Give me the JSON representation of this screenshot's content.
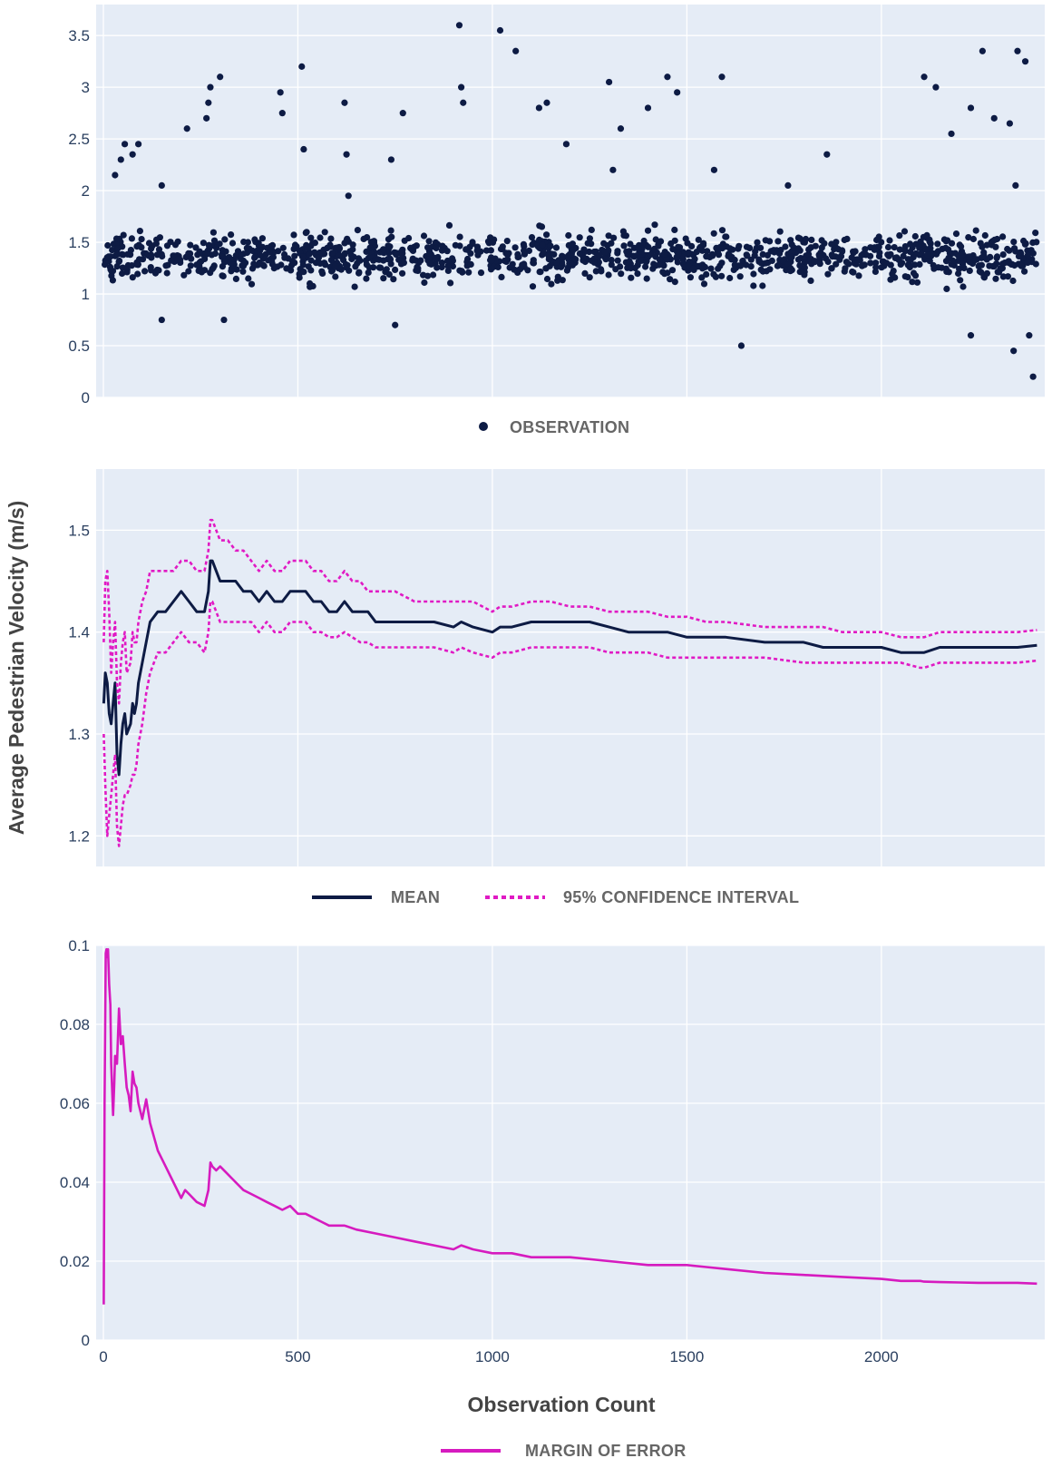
{
  "colors": {
    "plot_background": "#e5ecf6",
    "grid": "#ffffff",
    "observation": "#0d1b44",
    "mean": "#0d1b44",
    "confidence_interval": "#e01ac4",
    "margin_of_error": "#d61bbf"
  },
  "legends": {
    "observation": "OBSERVATION",
    "mean": "MEAN",
    "confidence_interval": "95% CONFIDENCE INTERVAL",
    "margin_of_error": "MARGIN OF ERROR"
  },
  "axis_titles": {
    "x": "Observation Count",
    "y": "Average Pedestrian Velocity (m/s)"
  },
  "chart_data": [
    {
      "type": "scatter",
      "xlim": [
        0,
        2420
      ],
      "ylim": [
        0,
        3.8
      ],
      "yticks": [
        0,
        0.5,
        1,
        1.5,
        2,
        2.5,
        3,
        3.5
      ],
      "ytick_labels": [
        "0",
        "0.5",
        "1",
        "1.5",
        "2",
        "2.5",
        "3",
        "3.5"
      ],
      "xticks": [
        0,
        500,
        1000,
        1500,
        2000
      ],
      "grid": true,
      "legend_position": "bottom-center",
      "series": [
        {
          "name": "OBSERVATION",
          "n_points": 2400,
          "bulk_band": [
            0.85,
            1.8
          ],
          "outliers": [
            [
              30,
              2.15
            ],
            [
              45,
              2.3
            ],
            [
              55,
              2.45
            ],
            [
              75,
              2.35
            ],
            [
              90,
              2.45
            ],
            [
              150,
              2.05
            ],
            [
              215,
              2.6
            ],
            [
              265,
              2.7
            ],
            [
              270,
              2.85
            ],
            [
              275,
              3.0
            ],
            [
              300,
              3.1
            ],
            [
              455,
              2.95
            ],
            [
              460,
              2.75
            ],
            [
              510,
              3.2
            ],
            [
              515,
              2.4
            ],
            [
              620,
              2.85
            ],
            [
              625,
              2.35
            ],
            [
              630,
              1.95
            ],
            [
              740,
              2.3
            ],
            [
              770,
              2.75
            ],
            [
              915,
              3.6
            ],
            [
              920,
              3.0
            ],
            [
              925,
              2.85
            ],
            [
              1020,
              3.55
            ],
            [
              1060,
              3.35
            ],
            [
              1120,
              2.8
            ],
            [
              1140,
              2.85
            ],
            [
              1190,
              2.45
            ],
            [
              1300,
              3.05
            ],
            [
              1310,
              2.2
            ],
            [
              1330,
              2.6
            ],
            [
              1400,
              2.8
            ],
            [
              1450,
              3.1
            ],
            [
              1475,
              2.95
            ],
            [
              1570,
              2.2
            ],
            [
              1590,
              3.1
            ],
            [
              1760,
              2.05
            ],
            [
              1860,
              2.35
            ],
            [
              2110,
              3.1
            ],
            [
              2140,
              3.0
            ],
            [
              2180,
              2.55
            ],
            [
              2230,
              2.8
            ],
            [
              2260,
              3.35
            ],
            [
              2290,
              2.7
            ],
            [
              2330,
              2.65
            ],
            [
              2350,
              3.35
            ],
            [
              2370,
              3.25
            ],
            [
              2345,
              2.05
            ],
            [
              150,
              0.75
            ],
            [
              310,
              0.75
            ],
            [
              750,
              0.7
            ],
            [
              1640,
              0.5
            ],
            [
              2230,
              0.6
            ],
            [
              2340,
              0.45
            ],
            [
              2380,
              0.6
            ],
            [
              2390,
              0.2
            ]
          ]
        }
      ]
    },
    {
      "type": "line",
      "xlim": [
        0,
        2420
      ],
      "ylim": [
        1.17,
        1.56
      ],
      "yticks": [
        1.2,
        1.3,
        1.4,
        1.5
      ],
      "ytick_labels": [
        "1.2",
        "1.3",
        "1.4",
        "1.5"
      ],
      "xticks": [
        0,
        500,
        1000,
        1500,
        2000
      ],
      "grid": true,
      "legend_position": "bottom-center",
      "series": [
        {
          "name": "MEAN",
          "style": "solid",
          "x": [
            1,
            5,
            10,
            15,
            20,
            25,
            30,
            35,
            40,
            45,
            50,
            55,
            60,
            70,
            75,
            80,
            85,
            90,
            100,
            110,
            120,
            140,
            160,
            180,
            200,
            220,
            240,
            260,
            270,
            275,
            280,
            290,
            300,
            320,
            340,
            360,
            380,
            400,
            420,
            440,
            460,
            480,
            500,
            520,
            540,
            560,
            580,
            600,
            620,
            640,
            660,
            680,
            700,
            750,
            800,
            850,
            900,
            920,
            950,
            1000,
            1020,
            1050,
            1100,
            1150,
            1200,
            1250,
            1300,
            1350,
            1400,
            1450,
            1500,
            1550,
            1600,
            1700,
            1800,
            1850,
            1900,
            2000,
            2050,
            2100,
            2110,
            2150,
            2200,
            2250,
            2300,
            2350,
            2400
          ],
          "y": [
            1.33,
            1.36,
            1.35,
            1.32,
            1.31,
            1.33,
            1.35,
            1.28,
            1.26,
            1.29,
            1.31,
            1.32,
            1.3,
            1.31,
            1.33,
            1.32,
            1.33,
            1.35,
            1.37,
            1.39,
            1.41,
            1.42,
            1.42,
            1.43,
            1.44,
            1.43,
            1.42,
            1.42,
            1.44,
            1.47,
            1.47,
            1.46,
            1.45,
            1.45,
            1.45,
            1.44,
            1.44,
            1.43,
            1.44,
            1.43,
            1.43,
            1.44,
            1.44,
            1.44,
            1.43,
            1.43,
            1.42,
            1.42,
            1.43,
            1.42,
            1.42,
            1.42,
            1.41,
            1.41,
            1.41,
            1.41,
            1.405,
            1.41,
            1.405,
            1.4,
            1.405,
            1.405,
            1.41,
            1.41,
            1.41,
            1.41,
            1.405,
            1.4,
            1.4,
            1.4,
            1.395,
            1.395,
            1.395,
            1.39,
            1.39,
            1.385,
            1.385,
            1.385,
            1.38,
            1.38,
            1.38,
            1.385,
            1.385,
            1.385,
            1.385,
            1.385,
            1.387
          ]
        },
        {
          "name": "95% CONFIDENCE INTERVAL",
          "style": "dotted",
          "bound": "upper",
          "x": [
            1,
            5,
            10,
            15,
            20,
            25,
            30,
            35,
            40,
            45,
            50,
            55,
            60,
            70,
            75,
            80,
            85,
            90,
            100,
            110,
            120,
            140,
            160,
            180,
            200,
            220,
            240,
            260,
            270,
            275,
            280,
            290,
            300,
            320,
            340,
            360,
            380,
            400,
            420,
            440,
            460,
            480,
            500,
            520,
            540,
            560,
            580,
            600,
            620,
            640,
            660,
            680,
            700,
            750,
            800,
            850,
            900,
            920,
            950,
            1000,
            1020,
            1050,
            1100,
            1150,
            1200,
            1250,
            1300,
            1350,
            1400,
            1450,
            1500,
            1550,
            1600,
            1700,
            1800,
            1850,
            1900,
            2000,
            2050,
            2100,
            2110,
            2150,
            2200,
            2250,
            2300,
            2350,
            2400
          ],
          "y": [
            1.39,
            1.45,
            1.46,
            1.42,
            1.36,
            1.39,
            1.41,
            1.35,
            1.33,
            1.37,
            1.39,
            1.4,
            1.36,
            1.37,
            1.4,
            1.39,
            1.39,
            1.41,
            1.43,
            1.44,
            1.46,
            1.46,
            1.46,
            1.46,
            1.47,
            1.47,
            1.46,
            1.46,
            1.48,
            1.51,
            1.51,
            1.5,
            1.49,
            1.49,
            1.48,
            1.48,
            1.47,
            1.46,
            1.47,
            1.46,
            1.46,
            1.47,
            1.47,
            1.47,
            1.46,
            1.46,
            1.45,
            1.45,
            1.46,
            1.45,
            1.45,
            1.44,
            1.44,
            1.44,
            1.43,
            1.43,
            1.43,
            1.43,
            1.43,
            1.42,
            1.425,
            1.425,
            1.43,
            1.43,
            1.425,
            1.425,
            1.42,
            1.42,
            1.42,
            1.415,
            1.415,
            1.41,
            1.41,
            1.405,
            1.405,
            1.405,
            1.4,
            1.4,
            1.395,
            1.395,
            1.395,
            1.4,
            1.4,
            1.4,
            1.4,
            1.4,
            1.402
          ]
        },
        {
          "name": "95% CONFIDENCE INTERVAL",
          "style": "dotted",
          "bound": "lower",
          "x": [
            1,
            5,
            10,
            15,
            20,
            25,
            30,
            35,
            40,
            45,
            50,
            55,
            60,
            70,
            75,
            80,
            85,
            90,
            100,
            110,
            120,
            140,
            160,
            180,
            200,
            220,
            240,
            260,
            270,
            275,
            280,
            290,
            300,
            320,
            340,
            360,
            380,
            400,
            420,
            440,
            460,
            480,
            500,
            520,
            540,
            560,
            580,
            600,
            620,
            640,
            660,
            680,
            700,
            750,
            800,
            850,
            900,
            920,
            950,
            1000,
            1020,
            1050,
            1100,
            1150,
            1200,
            1250,
            1300,
            1350,
            1400,
            1450,
            1500,
            1550,
            1600,
            1700,
            1800,
            1850,
            1900,
            2000,
            2050,
            2100,
            2110,
            2150,
            2200,
            2250,
            2300,
            2350,
            2400
          ],
          "y": [
            1.3,
            1.25,
            1.2,
            1.22,
            1.24,
            1.26,
            1.28,
            1.21,
            1.19,
            1.21,
            1.23,
            1.24,
            1.24,
            1.25,
            1.26,
            1.26,
            1.27,
            1.29,
            1.31,
            1.34,
            1.36,
            1.38,
            1.38,
            1.39,
            1.4,
            1.39,
            1.39,
            1.38,
            1.4,
            1.43,
            1.43,
            1.42,
            1.41,
            1.41,
            1.41,
            1.41,
            1.41,
            1.4,
            1.41,
            1.4,
            1.4,
            1.41,
            1.41,
            1.41,
            1.4,
            1.4,
            1.395,
            1.395,
            1.4,
            1.395,
            1.39,
            1.39,
            1.385,
            1.385,
            1.385,
            1.385,
            1.38,
            1.385,
            1.38,
            1.375,
            1.38,
            1.38,
            1.385,
            1.385,
            1.385,
            1.385,
            1.38,
            1.38,
            1.38,
            1.375,
            1.375,
            1.375,
            1.375,
            1.375,
            1.37,
            1.37,
            1.37,
            1.37,
            1.37,
            1.365,
            1.365,
            1.37,
            1.37,
            1.37,
            1.37,
            1.37,
            1.372
          ]
        }
      ]
    },
    {
      "type": "line",
      "xlim": [
        0,
        2420
      ],
      "ylim": [
        0,
        0.1
      ],
      "yticks": [
        0,
        0.02,
        0.04,
        0.06,
        0.08,
        0.1
      ],
      "ytick_labels": [
        "0",
        "0.02",
        "0.04",
        "0.06",
        "0.08",
        "0.1"
      ],
      "xticks": [
        0,
        500,
        1000,
        1500,
        2000
      ],
      "xtick_labels": [
        "0",
        "500",
        "1000",
        "1500",
        "2000"
      ],
      "xlabel": "Observation Count",
      "grid": true,
      "legend_position": "bottom-center",
      "series": [
        {
          "name": "MARGIN OF ERROR",
          "style": "solid",
          "x": [
            1,
            3,
            6,
            8,
            10,
            12,
            15,
            18,
            20,
            25,
            28,
            30,
            35,
            40,
            45,
            50,
            55,
            60,
            65,
            70,
            75,
            80,
            85,
            90,
            100,
            110,
            120,
            140,
            160,
            180,
            200,
            210,
            220,
            240,
            260,
            270,
            275,
            280,
            290,
            300,
            320,
            340,
            360,
            380,
            400,
            420,
            440,
            460,
            480,
            500,
            520,
            540,
            560,
            580,
            600,
            620,
            650,
            700,
            750,
            800,
            850,
            900,
            920,
            950,
            1000,
            1050,
            1100,
            1150,
            1200,
            1300,
            1400,
            1500,
            1550,
            1600,
            1700,
            1800,
            1900,
            2000,
            2050,
            2100,
            2110,
            2150,
            2200,
            2250,
            2300,
            2350,
            2400
          ],
          "y": [
            0.009,
            0.06,
            0.098,
            0.099,
            0.097,
            0.099,
            0.09,
            0.085,
            0.07,
            0.057,
            0.065,
            0.072,
            0.07,
            0.084,
            0.075,
            0.077,
            0.07,
            0.064,
            0.062,
            0.058,
            0.068,
            0.065,
            0.064,
            0.06,
            0.056,
            0.061,
            0.055,
            0.048,
            0.044,
            0.04,
            0.036,
            0.038,
            0.037,
            0.035,
            0.034,
            0.038,
            0.045,
            0.044,
            0.043,
            0.044,
            0.042,
            0.04,
            0.038,
            0.037,
            0.036,
            0.035,
            0.034,
            0.033,
            0.034,
            0.032,
            0.032,
            0.031,
            0.03,
            0.029,
            0.029,
            0.029,
            0.028,
            0.027,
            0.026,
            0.025,
            0.024,
            0.023,
            0.024,
            0.023,
            0.022,
            0.022,
            0.021,
            0.021,
            0.021,
            0.02,
            0.019,
            0.019,
            0.0185,
            0.018,
            0.017,
            0.0165,
            0.016,
            0.0155,
            0.015,
            0.015,
            0.0148,
            0.0147,
            0.0146,
            0.0145,
            0.0145,
            0.0145,
            0.0143
          ]
        }
      ]
    }
  ]
}
